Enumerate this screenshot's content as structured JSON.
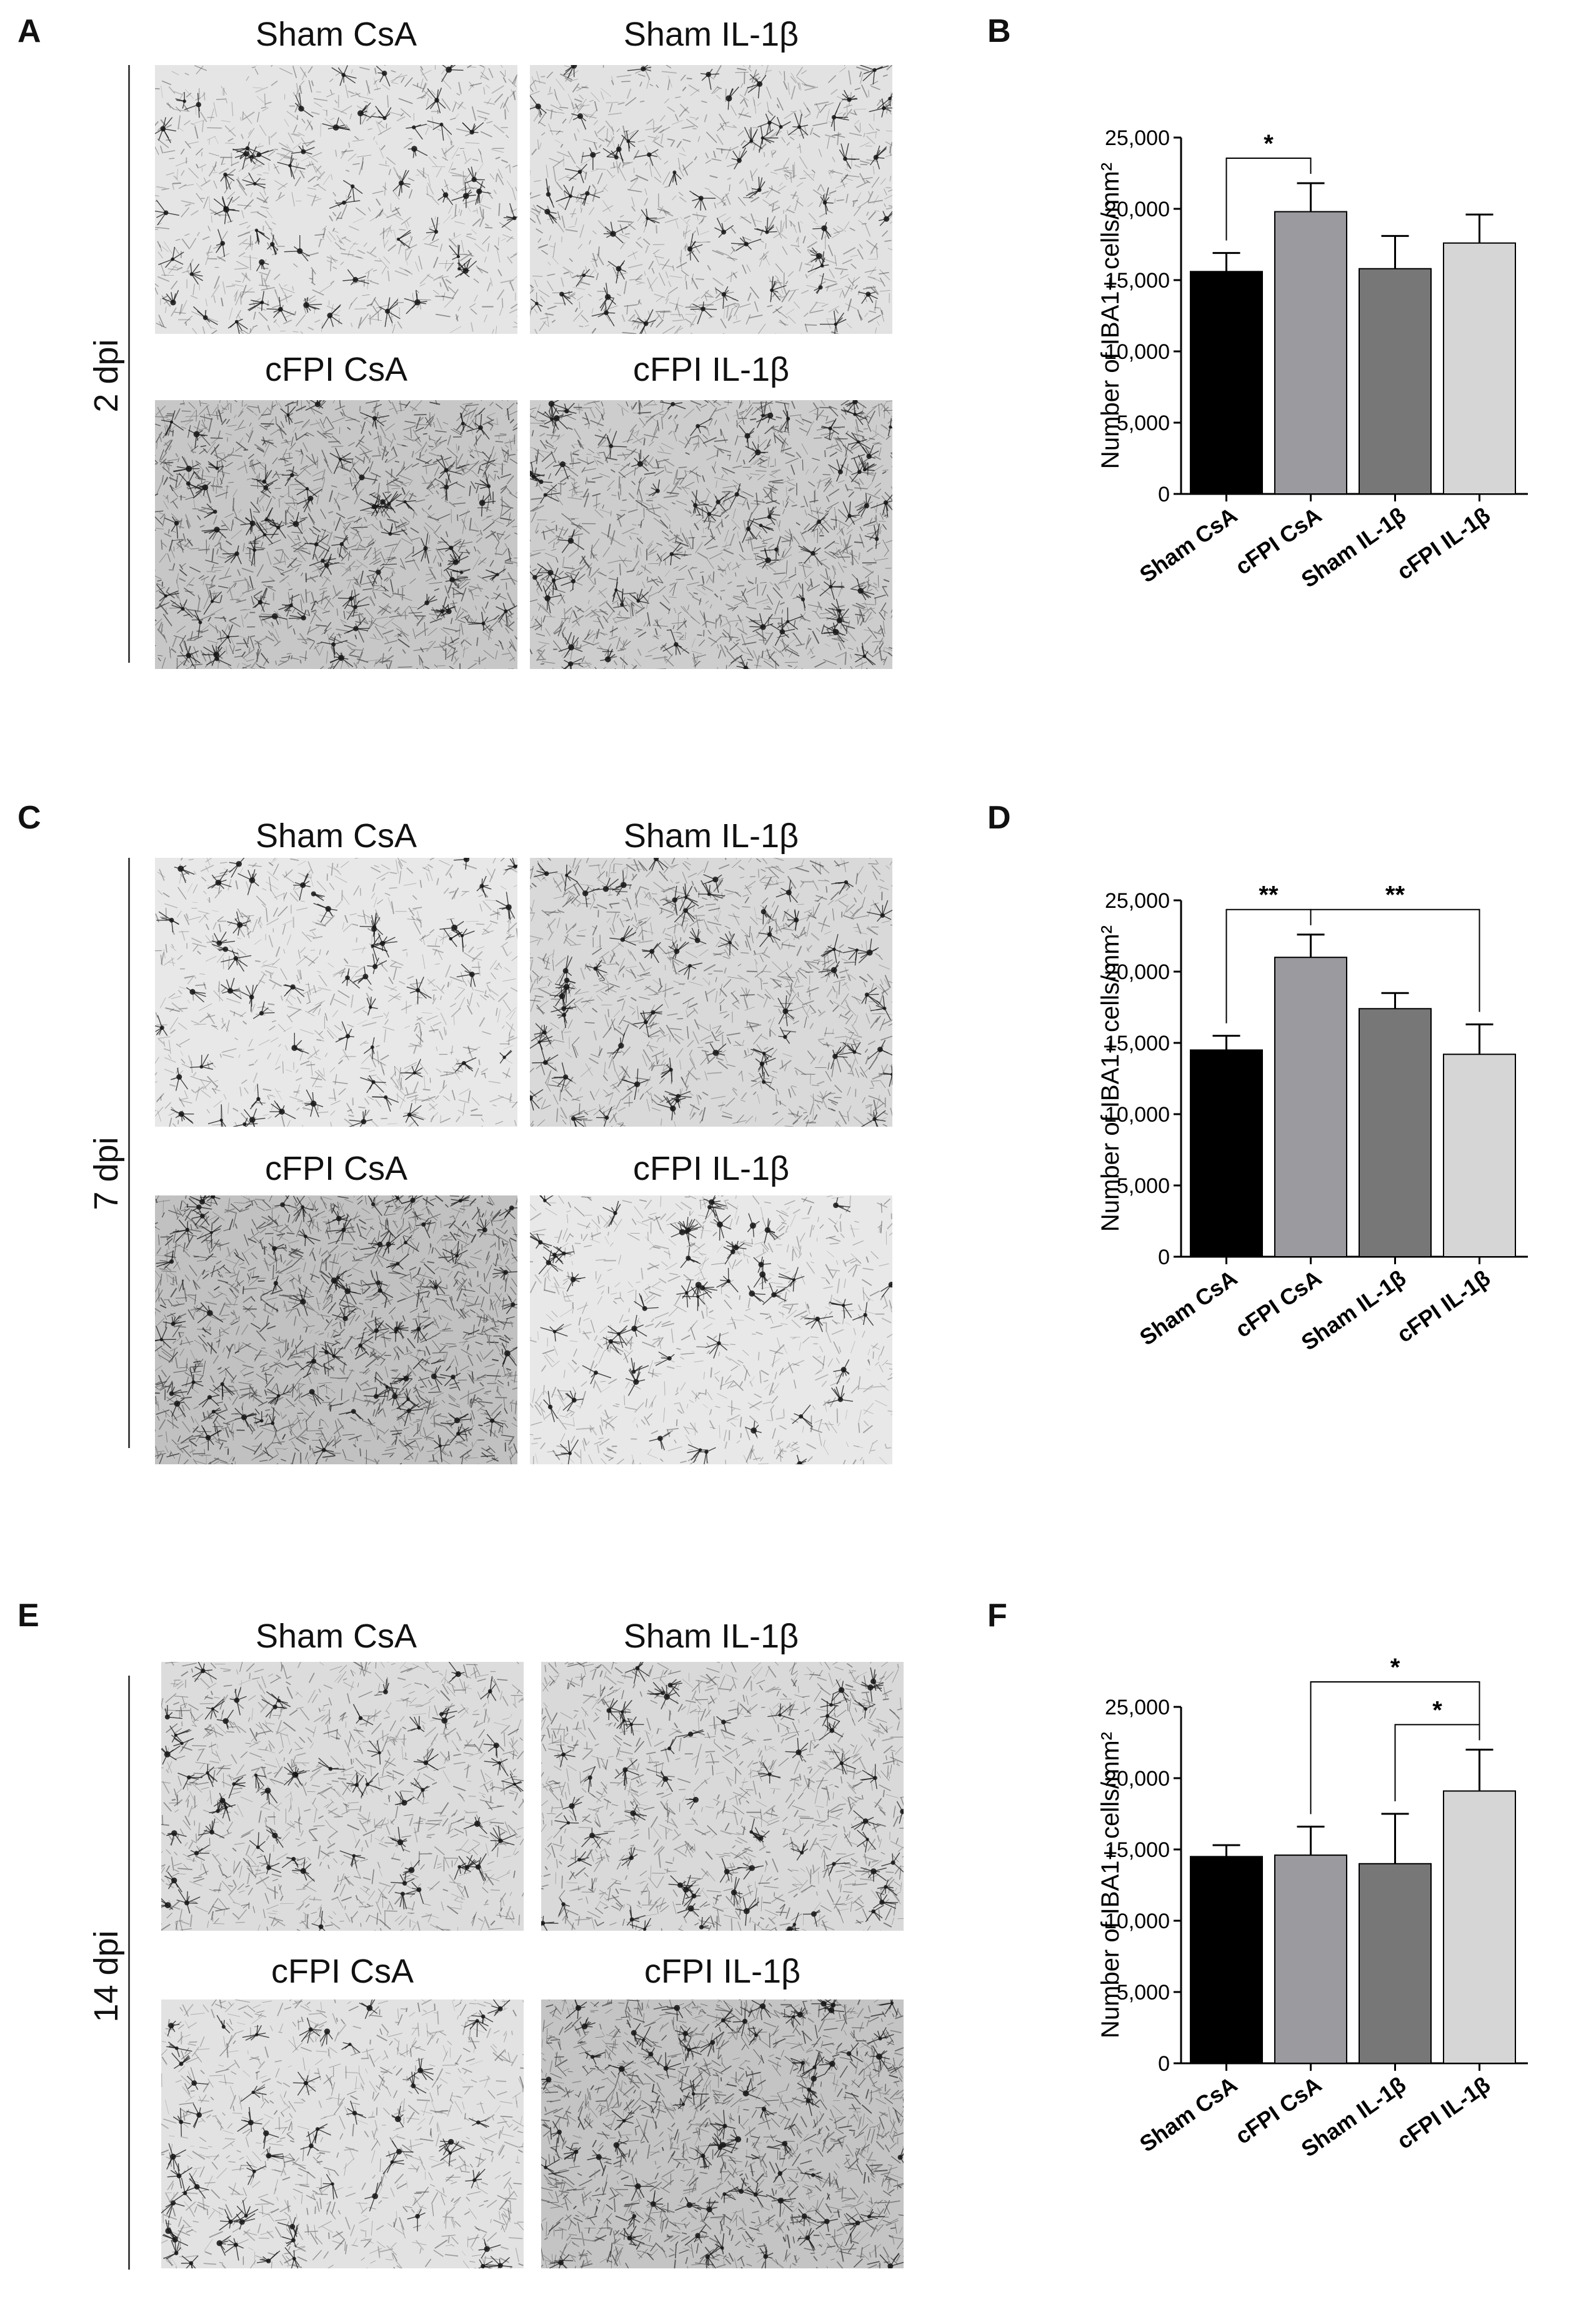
{
  "rows": [
    {
      "letter": "A",
      "timepoint": "2 dpi",
      "images": [
        {
          "label": "Sham CsA",
          "density": 0.35
        },
        {
          "label": "Sham IL-1β",
          "density": 0.4
        },
        {
          "label": "cFPI CsA",
          "density": 0.85
        },
        {
          "label": "cFPI  IL-1β",
          "density": 0.75
        }
      ]
    },
    {
      "letter": "C",
      "timepoint": "7 dpi",
      "images": [
        {
          "label": "Sham CsA",
          "density": 0.3
        },
        {
          "label": "Sham IL-1β",
          "density": 0.55
        },
        {
          "label": "cFPI CsA",
          "density": 0.95
        },
        {
          "label": "cFPI  IL-1β",
          "density": 0.3
        }
      ]
    },
    {
      "letter": "E",
      "timepoint": "14 dpi",
      "images": [
        {
          "label": "Sham CsA",
          "density": 0.5
        },
        {
          "label": "Sham IL-1β",
          "density": 0.55
        },
        {
          "label": "cFPI CsA",
          "density": 0.4
        },
        {
          "label": "cFPI  IL-1β",
          "density": 0.9
        }
      ]
    }
  ],
  "chart_data": [
    {
      "letter": "B",
      "type": "bar",
      "categories": [
        "Sham CsA",
        "cFPI CsA",
        "Sham IL-1β",
        "cFPI IL-1β"
      ],
      "values": [
        15600,
        19800,
        15800,
        17600
      ],
      "errors": [
        1300,
        2000,
        2300,
        2000
      ],
      "colors": [
        "#000000",
        "#9a9a9f",
        "#777777",
        "#d6d6d6"
      ],
      "ylabel": "Number of IBA1+ cells/mm²",
      "yticks": [
        "0",
        "5,000",
        "10,000",
        "15,000",
        "20,000",
        "25,000"
      ],
      "ylim": [
        0,
        25000
      ],
      "significance": [
        {
          "from": 0,
          "to": 1,
          "label": "*",
          "level": 0
        }
      ]
    },
    {
      "letter": "D",
      "type": "bar",
      "categories": [
        "Sham CsA",
        "cFPI CsA",
        "Sham IL-1β",
        "cFPI IL-1β"
      ],
      "values": [
        14500,
        21000,
        17400,
        14200
      ],
      "errors": [
        1000,
        1600,
        1100,
        2100
      ],
      "colors": [
        "#000000",
        "#9a9a9f",
        "#777777",
        "#d6d6d6"
      ],
      "ylabel": "Number of IBA1+ cells/mm²",
      "yticks": [
        "0",
        "5,000",
        "10,000",
        "15,000",
        "20,000",
        "25,000"
      ],
      "ylim": [
        0,
        25000
      ],
      "significance": [
        {
          "from": 0,
          "to": 1,
          "label": "**",
          "level": 0
        },
        {
          "from": 1,
          "to": 3,
          "label": "**",
          "level": 0
        }
      ]
    },
    {
      "letter": "F",
      "type": "bar",
      "categories": [
        "Sham CsA",
        "cFPI CsA",
        "Sham IL-1β",
        "cFPI IL-1β"
      ],
      "values": [
        14500,
        14600,
        14000,
        19100
      ],
      "errors": [
        800,
        2000,
        3500,
        2900
      ],
      "colors": [
        "#000000",
        "#9a9a9f",
        "#777777",
        "#d6d6d6"
      ],
      "ylabel": "Number of IBA1+ cells/mm²",
      "yticks": [
        "0",
        "5,000",
        "10,000",
        "15,000",
        "20,000",
        "25,000"
      ],
      "ylim": [
        0,
        25000
      ],
      "significance": [
        {
          "from": 1,
          "to": 3,
          "label": "*",
          "level": 1
        },
        {
          "from": 2,
          "to": 3,
          "label": "*",
          "level": 0
        }
      ]
    }
  ]
}
